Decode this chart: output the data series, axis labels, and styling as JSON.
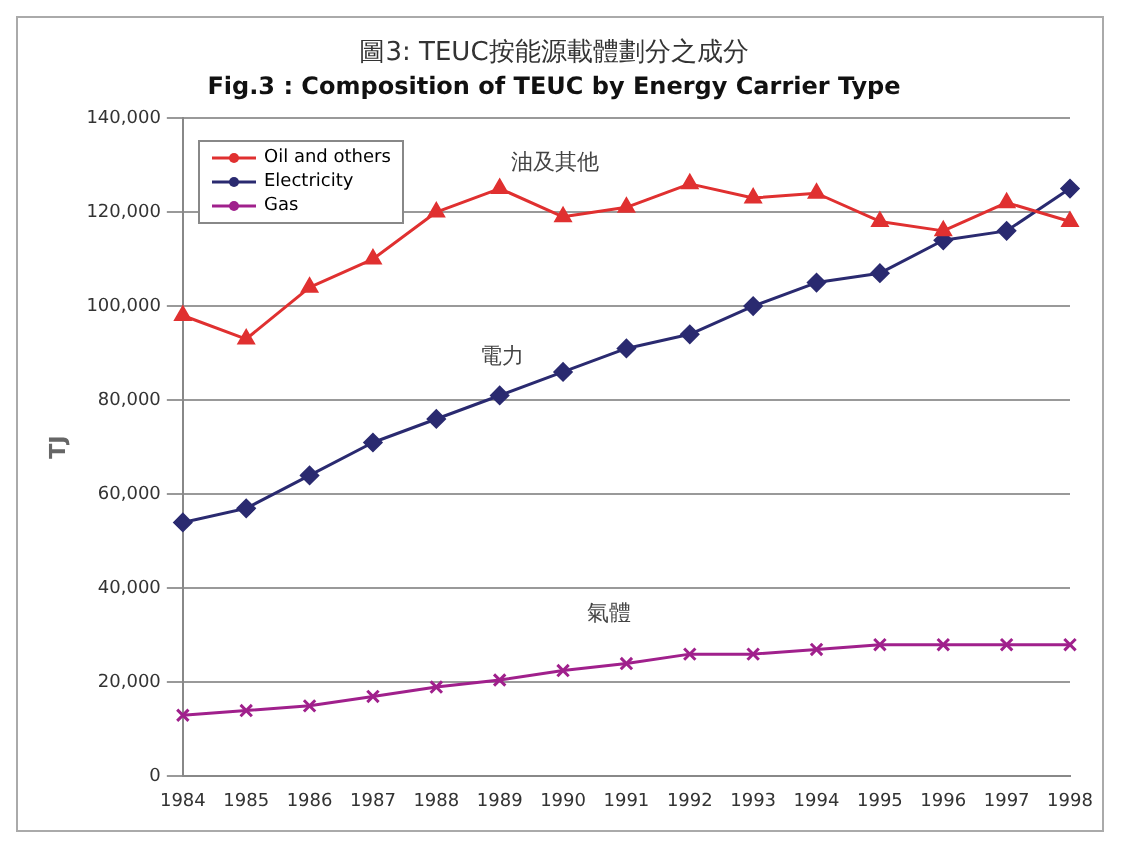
{
  "chart_data": {
    "type": "line",
    "title": "圖3: TEUC按能源載體劃分之成分",
    "subtitle": "Fig.3 : Composition of TEUC by Energy Carrier Type",
    "ylabel": "TJ",
    "categories": [
      "1984",
      "1985",
      "1986",
      "1987",
      "1988",
      "1989",
      "1990",
      "1991",
      "1992",
      "1993",
      "1994",
      "1995",
      "1996",
      "1997",
      "1998"
    ],
    "series": [
      {
        "name": "Oil and others",
        "color": "#e03030",
        "marker": "triangle",
        "values": [
          98000,
          93000,
          104000,
          110000,
          120000,
          125000,
          119000,
          121000,
          126000,
          123000,
          124000,
          118000,
          116000,
          122000,
          118000
        ]
      },
      {
        "name": "Electricity",
        "color": "#2a2a70",
        "marker": "diamond",
        "values": [
          54000,
          57000,
          64000,
          71000,
          76000,
          81000,
          86000,
          91000,
          94000,
          100000,
          105000,
          107000,
          114000,
          116000,
          125000
        ]
      },
      {
        "name": "Gas",
        "color": "#a0208c",
        "marker": "cross",
        "values": [
          13000,
          14000,
          15000,
          17000,
          19000,
          20500,
          22500,
          24000,
          26000,
          26000,
          27000,
          28000,
          28000,
          28000,
          28000
        ]
      }
    ],
    "ylim": [
      0,
      140000
    ],
    "yticks": [
      {
        "value": 0,
        "label": "0"
      },
      {
        "value": 20000,
        "label": "20,000"
      },
      {
        "value": 40000,
        "label": "40,000"
      },
      {
        "value": 60000,
        "label": "60,000"
      },
      {
        "value": 80000,
        "label": "80,000"
      },
      {
        "value": 100000,
        "label": "100,000"
      },
      {
        "value": 120000,
        "label": "120,000"
      },
      {
        "value": 140000,
        "label": "140,000"
      }
    ],
    "grid": "y",
    "legend": "top left",
    "line_style": "solid",
    "annotations": [
      "油及其他",
      "電力",
      "氣體"
    ]
  }
}
